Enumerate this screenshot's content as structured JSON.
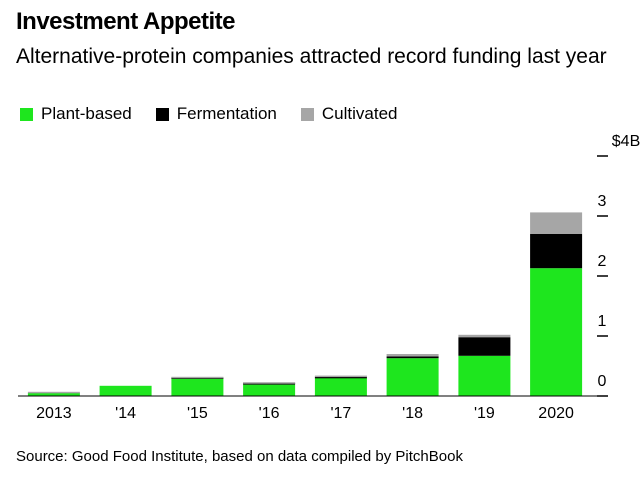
{
  "title": "Investment Appetite",
  "subtitle": "Alternative-protein companies attracted record funding last year",
  "source": "Source: Good Food Institute, based on data compiled by PitchBook",
  "colors": {
    "plant": "#1ee61e",
    "fermentation": "#000000",
    "cultivated": "#a6a6a6"
  },
  "chart_data": {
    "type": "bar",
    "stacked": true,
    "categories": [
      "2013",
      "'14",
      "'15",
      "'16",
      "'17",
      "'18",
      "'19",
      "2020"
    ],
    "series": [
      {
        "name": "Plant-based",
        "values": [
          0.05,
          0.17,
          0.3,
          0.19,
          0.3,
          0.63,
          0.67,
          2.13
        ]
      },
      {
        "name": "Fermentation",
        "values": [
          0.0,
          0.0,
          0.01,
          0.03,
          0.02,
          0.03,
          0.31,
          0.57
        ]
      },
      {
        "name": "Cultivated",
        "values": [
          0.02,
          0.0,
          0.01,
          0.01,
          0.02,
          0.04,
          0.04,
          0.36
        ]
      }
    ],
    "yticks": [
      {
        "value": 0,
        "label": "0"
      },
      {
        "value": 1,
        "label": "1"
      },
      {
        "value": 2,
        "label": "2"
      },
      {
        "value": 3,
        "label": "3"
      },
      {
        "value": 4,
        "label": "$4B"
      }
    ],
    "ylim": [
      0,
      4
    ],
    "legend_position": "top-left",
    "axis_side": "right"
  }
}
